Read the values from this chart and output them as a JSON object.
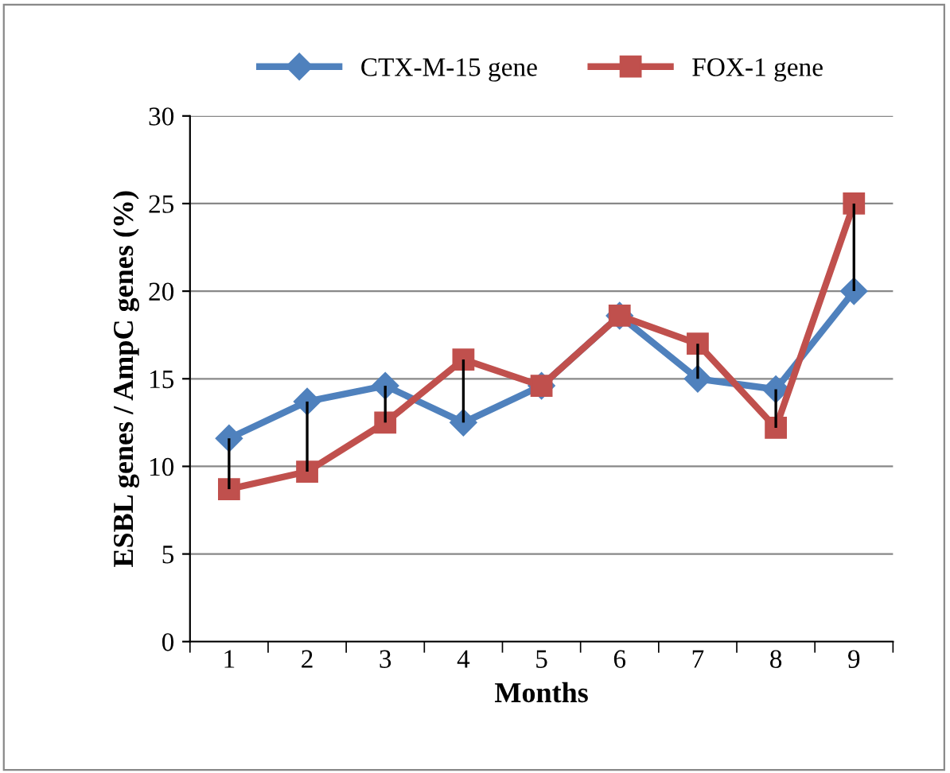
{
  "chart_data": {
    "type": "line",
    "xlabel": "Months",
    "ylabel": "ESBL genes / AmpC genes (%)",
    "categories": [
      "1",
      "2",
      "3",
      "4",
      "5",
      "6",
      "7",
      "8",
      "9"
    ],
    "series": [
      {
        "name": "CTX-M-15 gene",
        "color": "#4f81bd",
        "marker": "diamond",
        "values": [
          11.6,
          13.7,
          14.6,
          12.5,
          14.6,
          18.6,
          15.0,
          14.4,
          20.0
        ],
        "errors": [
          [
            8.7,
            11.6
          ],
          [
            9.7,
            13.7
          ],
          [
            12.5,
            14.6
          ],
          [
            12.5,
            16.1
          ],
          null,
          null,
          [
            15.0,
            17.0
          ],
          [
            12.2,
            14.4
          ],
          [
            20.0,
            25.0
          ]
        ]
      },
      {
        "name": "FOX-1 gene",
        "color": "#c0504d",
        "marker": "square",
        "values": [
          8.7,
          9.7,
          12.5,
          16.1,
          14.6,
          18.6,
          17.0,
          12.2,
          25.0
        ]
      }
    ],
    "ylim": [
      0,
      30
    ],
    "yticks": [
      0,
      5,
      10,
      15,
      20,
      25,
      30
    ],
    "grid": "y",
    "legend": "top",
    "line_style": "solid"
  }
}
